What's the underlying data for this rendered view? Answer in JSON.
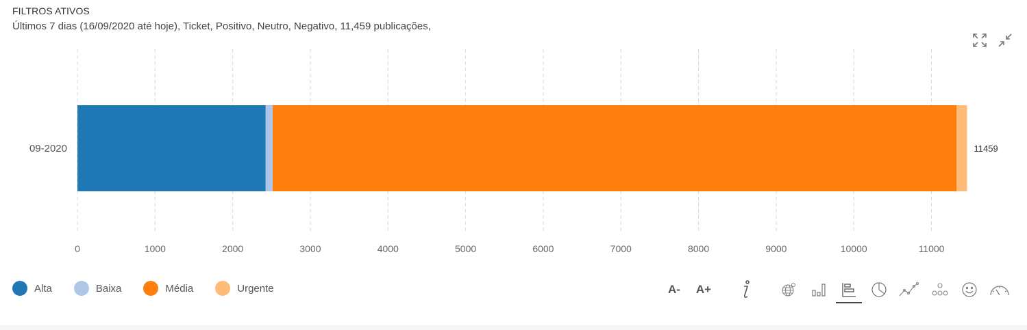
{
  "header": {
    "title": "FILTROS ATIVOS",
    "summary": "Últimos 7 dias (16/09/2020 até hoje), Ticket, Positivo, Neutro, Negativo, 11,459 publicações,"
  },
  "chart_data": {
    "type": "bar",
    "orientation": "horizontal",
    "stacked": true,
    "categories": [
      "09-2020"
    ],
    "series": [
      {
        "name": "Alta",
        "values": [
          2425
        ],
        "color": "#1f77b4"
      },
      {
        "name": "Baixa",
        "values": [
          90
        ],
        "color": "#aec7e8"
      },
      {
        "name": "Média",
        "values": [
          8810
        ],
        "color": "#ff7f0e"
      },
      {
        "name": "Urgente",
        "values": [
          134
        ],
        "color": "#ffbb78"
      }
    ],
    "totals": [
      "11459"
    ],
    "xlim": [
      0,
      11459
    ],
    "xticks": [
      "0",
      "1000",
      "2000",
      "3000",
      "4000",
      "5000",
      "6000",
      "7000",
      "8000",
      "9000",
      "10000",
      "11000"
    ],
    "grid": true,
    "legend_position": "bottom-left"
  },
  "toolbar": {
    "font_decrease": "A-",
    "font_increase": "A+",
    "icons": [
      "info-icon",
      "globe-icon",
      "column-chart-icon",
      "bar-chart-icon",
      "pie-chart-icon",
      "line-chart-icon",
      "network-icon",
      "smiley-icon",
      "gauge-icon"
    ],
    "active": "bar-chart-icon"
  },
  "colors": {
    "grid": "#d8d8d8",
    "axis_text": "#666666",
    "icon": "#777777"
  }
}
